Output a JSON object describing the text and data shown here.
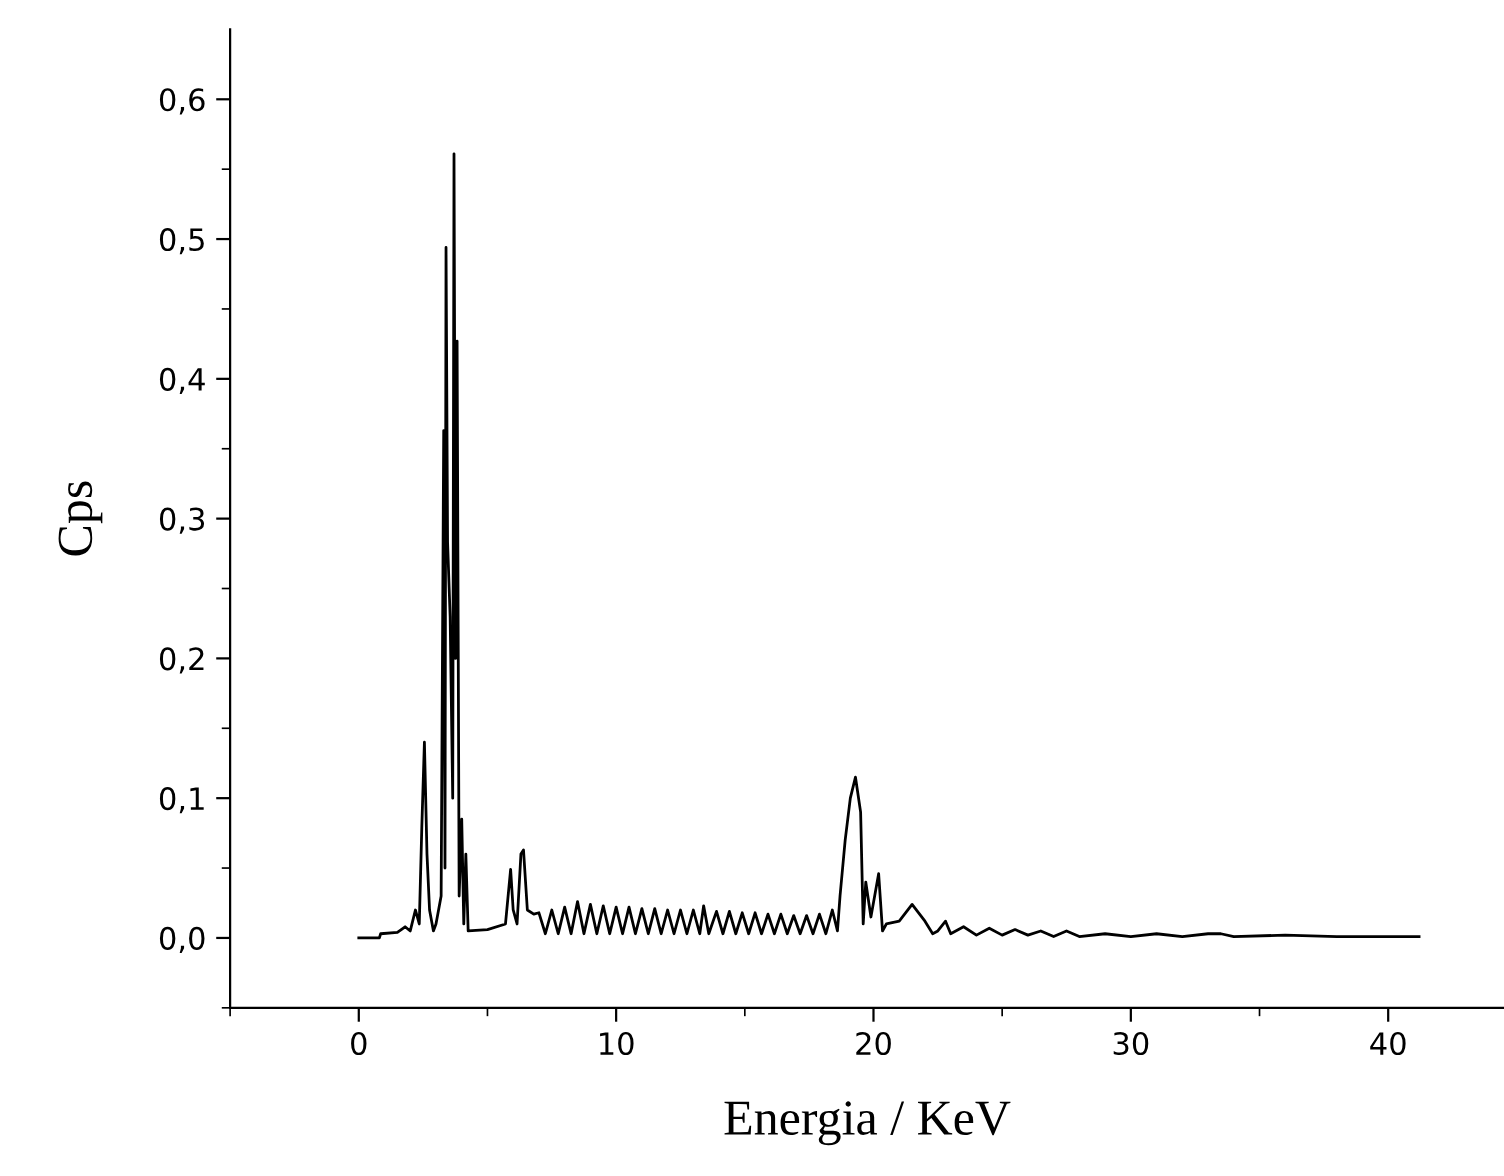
{
  "chart_data": {
    "type": "line",
    "xlabel": "Energia / KeV",
    "ylabel": "Cps",
    "xlim": [
      -5,
      44.5
    ],
    "ylim": [
      -0.05,
      0.65
    ],
    "xticks": [
      {
        "value": -5,
        "label": null
      },
      {
        "value": 0,
        "label": "0"
      },
      {
        "value": 5,
        "label": null
      },
      {
        "value": 10,
        "label": "10"
      },
      {
        "value": 15,
        "label": null
      },
      {
        "value": 20,
        "label": "20"
      },
      {
        "value": 25,
        "label": null
      },
      {
        "value": 30,
        "label": "30"
      },
      {
        "value": 35,
        "label": null
      },
      {
        "value": 40,
        "label": "40"
      }
    ],
    "yticks": [
      {
        "value": -0.05,
        "label": null
      },
      {
        "value": 0,
        "label": "0,0"
      },
      {
        "value": 0.05,
        "label": null
      },
      {
        "value": 0.1,
        "label": "0,1"
      },
      {
        "value": 0.15,
        "label": null
      },
      {
        "value": 0.2,
        "label": "0,2"
      },
      {
        "value": 0.25,
        "label": null
      },
      {
        "value": 0.3,
        "label": "0,3"
      },
      {
        "value": 0.35,
        "label": null
      },
      {
        "value": 0.4,
        "label": "0,4"
      },
      {
        "value": 0.45,
        "label": null
      },
      {
        "value": 0.5,
        "label": "0,5"
      },
      {
        "value": 0.55,
        "label": null
      },
      {
        "value": 0.6,
        "label": "0,6"
      }
    ],
    "grid": false,
    "legend": false,
    "marker": "none",
    "line_style": "solid",
    "series": [
      {
        "color": "#000000",
        "x": [
          0,
          0.8,
          0.85,
          1.5,
          1.8,
          2.0,
          2.2,
          2.35,
          2.45,
          2.55,
          2.65,
          2.75,
          2.9,
          3.0,
          3.2,
          3.3,
          3.35,
          3.39,
          3.45,
          3.55,
          3.65,
          3.7,
          3.76,
          3.82,
          3.9,
          4.0,
          4.08,
          4.16,
          4.25,
          5.0,
          5.7,
          5.9,
          6.0,
          6.15,
          6.3,
          6.4,
          6.55,
          6.8,
          7.0,
          7.25,
          7.5,
          7.75,
          8.0,
          8.25,
          8.5,
          8.75,
          9.0,
          9.25,
          9.5,
          9.75,
          10.0,
          10.25,
          10.5,
          10.75,
          11.0,
          11.25,
          11.5,
          11.75,
          12.0,
          12.25,
          12.5,
          12.75,
          13.0,
          13.25,
          13.4,
          13.6,
          13.9,
          14.15,
          14.4,
          14.65,
          14.9,
          15.15,
          15.4,
          15.65,
          15.9,
          16.15,
          16.4,
          16.65,
          16.9,
          17.15,
          17.4,
          17.65,
          17.9,
          18.15,
          18.4,
          18.6,
          18.7,
          18.9,
          19.1,
          19.3,
          19.5,
          19.6,
          19.7,
          19.9,
          20.2,
          20.35,
          20.5,
          21.0,
          21.5,
          22.0,
          22.3,
          22.5,
          22.8,
          23.0,
          23.5,
          24,
          24.5,
          25,
          25.5,
          26,
          26.5,
          27,
          27.5,
          28,
          29,
          30,
          31,
          32,
          33,
          33.5,
          34,
          36,
          38,
          41.2
        ],
        "values": [
          0,
          0,
          0.003,
          0.004,
          0.008,
          0.005,
          0.02,
          0.01,
          0.08,
          0.14,
          0.06,
          0.02,
          0.005,
          0.01,
          0.03,
          0.363,
          0.05,
          0.494,
          0.283,
          0.23,
          0.1,
          0.561,
          0.2,
          0.427,
          0.03,
          0.085,
          0.01,
          0.06,
          0.005,
          0.006,
          0.01,
          0.049,
          0.02,
          0.01,
          0.06,
          0.063,
          0.02,
          0.017,
          0.018,
          0.003,
          0.02,
          0.003,
          0.022,
          0.003,
          0.026,
          0.003,
          0.024,
          0.003,
          0.023,
          0.003,
          0.022,
          0.003,
          0.022,
          0.003,
          0.021,
          0.003,
          0.021,
          0.003,
          0.02,
          0.003,
          0.02,
          0.003,
          0.02,
          0.003,
          0.023,
          0.003,
          0.019,
          0.003,
          0.019,
          0.003,
          0.018,
          0.003,
          0.018,
          0.003,
          0.017,
          0.003,
          0.017,
          0.003,
          0.016,
          0.003,
          0.016,
          0.003,
          0.017,
          0.003,
          0.02,
          0.005,
          0.03,
          0.07,
          0.1,
          0.115,
          0.09,
          0.01,
          0.04,
          0.015,
          0.046,
          0.005,
          0.01,
          0.012,
          0.024,
          0.012,
          0.003,
          0.005,
          0.012,
          0.003,
          0.008,
          0.002,
          0.007,
          0.002,
          0.006,
          0.002,
          0.005,
          0.001,
          0.005,
          0.001,
          0.003,
          0.001,
          0.003,
          0.001,
          0.003,
          0.003,
          0.001,
          0.002,
          0.001,
          0.001
        ]
      }
    ]
  }
}
